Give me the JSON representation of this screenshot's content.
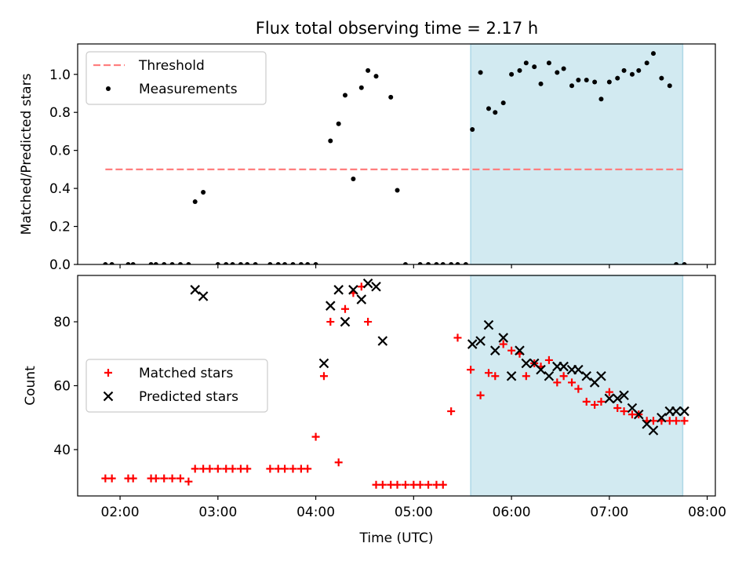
{
  "figure_title": "Flux total observing time = 2.17 h",
  "colors": {
    "highlight": "#add8e6",
    "threshold": "#ff7f7f",
    "measurement": "#000000",
    "matched": "#ff0000",
    "predicted": "#000000"
  },
  "chart_data": [
    {
      "type": "scatter",
      "xlabel": "",
      "ylabel": "Matched/Predicted stars",
      "xlim": [
        "01:34",
        "08:05"
      ],
      "ylim": [
        0,
        1.16
      ],
      "yticks": [
        0.0,
        0.2,
        0.4,
        0.6,
        0.8,
        1.0
      ],
      "ytick_labels": [
        "0.0",
        "0.2",
        "0.4",
        "0.6",
        "0.8",
        "1.0"
      ],
      "highlight_span": {
        "start": "05:35",
        "end": "07:45"
      },
      "legend": {
        "position": "upper-left",
        "entries": [
          "Threshold",
          "Measurements"
        ]
      },
      "series": [
        {
          "name": "Threshold",
          "style": "dashed-line",
          "x": [
            "01:51",
            "07:45"
          ],
          "y": [
            0.5,
            0.5
          ]
        },
        {
          "name": "Measurements",
          "style": "dot",
          "x": [
            "01:51",
            "01:55",
            "02:05",
            "02:08",
            "02:19",
            "02:22",
            "02:27",
            "02:32",
            "02:37",
            "02:42",
            "02:46",
            "02:51",
            "03:00",
            "03:05",
            "03:09",
            "03:14",
            "03:18",
            "03:23",
            "03:32",
            "03:37",
            "03:41",
            "03:46",
            "03:51",
            "03:55",
            "04:00",
            "04:09",
            "04:14",
            "04:18",
            "04:23",
            "04:28",
            "04:32",
            "04:37",
            "04:46",
            "04:50",
            "04:55",
            "05:04",
            "05:09",
            "05:14",
            "05:18",
            "05:23",
            "05:27",
            "05:32",
            "05:36",
            "05:41",
            "05:46",
            "05:50",
            "05:55",
            "06:00",
            "06:05",
            "06:09",
            "06:14",
            "06:18",
            "06:23",
            "06:28",
            "06:32",
            "06:37",
            "06:41",
            "06:46",
            "06:51",
            "06:55",
            "07:00",
            "07:05",
            "07:09",
            "07:14",
            "07:18",
            "07:23",
            "07:27",
            "07:32",
            "07:37",
            "07:41",
            "07:46"
          ],
          "y": [
            0,
            0,
            0,
            0,
            0,
            0,
            0,
            0,
            0,
            0,
            0.33,
            0.38,
            0,
            0,
            0,
            0,
            0,
            0,
            0,
            0,
            0,
            0,
            0,
            0,
            0,
            0.65,
            0.74,
            0.89,
            0.45,
            0.93,
            1.02,
            0.99,
            0.88,
            0.39,
            0,
            0,
            0,
            0,
            0,
            0,
            0,
            0,
            0.71,
            1.01,
            0.82,
            0.8,
            0.85,
            1.0,
            1.02,
            1.06,
            1.04,
            0.95,
            1.06,
            1.01,
            1.03,
            0.94,
            0.97,
            0.97,
            0.96,
            0.87,
            0.96,
            0.98,
            1.02,
            1.0,
            1.02,
            1.06,
            1.11,
            0.98,
            0.94,
            0,
            0
          ]
        }
      ]
    },
    {
      "type": "scatter",
      "xlabel": "Time (UTC)",
      "ylabel": "Count",
      "xlim": [
        "01:34",
        "08:05"
      ],
      "ylim": [
        25.5,
        94.5
      ],
      "yticks": [
        40,
        60,
        80
      ],
      "ytick_labels": [
        "40",
        "60",
        "80"
      ],
      "xticks": [
        "02:00",
        "03:00",
        "04:00",
        "05:00",
        "06:00",
        "07:00",
        "08:00"
      ],
      "xtick_labels": [
        "02:00",
        "03:00",
        "04:00",
        "05:00",
        "06:00",
        "07:00",
        "08:00"
      ],
      "highlight_span": {
        "start": "05:35",
        "end": "07:45"
      },
      "legend": {
        "position": "center-left",
        "entries": [
          "Matched stars",
          "Predicted stars"
        ]
      },
      "series": [
        {
          "name": "Matched stars",
          "style": "plus",
          "x": [
            "01:51",
            "01:55",
            "02:05",
            "02:08",
            "02:19",
            "02:22",
            "02:27",
            "02:32",
            "02:37",
            "02:42",
            "02:46",
            "02:51",
            "02:55",
            "03:00",
            "03:05",
            "03:09",
            "03:14",
            "03:18",
            "03:32",
            "03:37",
            "03:41",
            "03:46",
            "03:51",
            "03:55",
            "04:00",
            "04:05",
            "04:09",
            "04:14",
            "04:18",
            "04:23",
            "04:28",
            "04:32",
            "04:37",
            "04:41",
            "04:46",
            "04:50",
            "04:55",
            "05:00",
            "05:04",
            "05:09",
            "05:14",
            "05:18",
            "05:23",
            "05:27",
            "05:35",
            "05:41",
            "05:46",
            "05:50",
            "05:55",
            "06:00",
            "06:05",
            "06:09",
            "06:14",
            "06:18",
            "06:23",
            "06:28",
            "06:32",
            "06:37",
            "06:41",
            "06:46",
            "06:51",
            "06:55",
            "07:00",
            "07:05",
            "07:09",
            "07:14",
            "07:18",
            "07:23",
            "07:27",
            "07:32",
            "07:37",
            "07:41",
            "07:46"
          ],
          "y": [
            31,
            31,
            31,
            31,
            31,
            31,
            31,
            31,
            31,
            30,
            34,
            34,
            34,
            34,
            34,
            34,
            34,
            34,
            34,
            34,
            34,
            34,
            34,
            34,
            44,
            63,
            80,
            36,
            84,
            89,
            91,
            80,
            29,
            29,
            29,
            29,
            29,
            29,
            29,
            29,
            29,
            29,
            52,
            75,
            65,
            57,
            64,
            63,
            73,
            71,
            70,
            63,
            67,
            66,
            68,
            61,
            63,
            61,
            59,
            55,
            54,
            55,
            58,
            53,
            52,
            51,
            51,
            49,
            49,
            49,
            49,
            49,
            49
          ]
        },
        {
          "name": "Predicted stars",
          "style": "x",
          "x": [
            "02:46",
            "02:51",
            "04:05",
            "04:09",
            "04:14",
            "04:18",
            "04:23",
            "04:28",
            "04:32",
            "04:37",
            "04:41",
            "05:36",
            "05:41",
            "05:46",
            "05:50",
            "05:55",
            "06:00",
            "06:05",
            "06:09",
            "06:14",
            "06:18",
            "06:23",
            "06:28",
            "06:32",
            "06:37",
            "06:41",
            "06:46",
            "06:51",
            "06:55",
            "07:00",
            "07:05",
            "07:09",
            "07:14",
            "07:18",
            "07:23",
            "07:27",
            "07:32",
            "07:37",
            "07:41",
            "07:46"
          ],
          "y": [
            90,
            88,
            67,
            85,
            90,
            80,
            90,
            87,
            92,
            91,
            74,
            73,
            74,
            79,
            71,
            75,
            63,
            71,
            67,
            67,
            65,
            63,
            66,
            66,
            65,
            65,
            63,
            61,
            63,
            56,
            56,
            57,
            53,
            51,
            48,
            46,
            50,
            52,
            52,
            52
          ]
        }
      ]
    }
  ]
}
